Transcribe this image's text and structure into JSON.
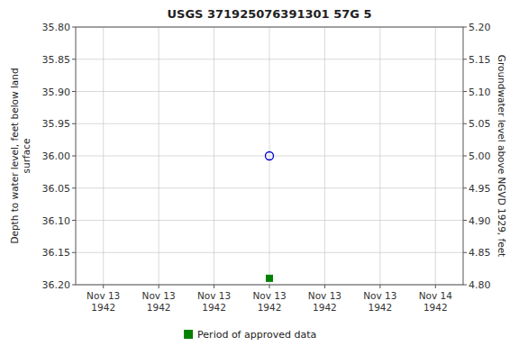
{
  "chart_data": {
    "type": "scatter",
    "title": "USGS 371925076391301 57G  5",
    "ylabel": "Depth to water level, feet below land\nsurface",
    "y2label": "Groundwater level above NGVD 1929, feet",
    "categories": [
      "Nov 13\n1942",
      "Nov 13\n1942",
      "Nov 13\n1942",
      "Nov 13\n1942",
      "Nov 13\n1942",
      "Nov 13\n1942",
      "Nov 14\n1942"
    ],
    "series": [
      {
        "color": "#0000cc",
        "marker": "open-circle",
        "values": [
          null,
          null,
          null,
          36.0,
          null,
          null,
          null
        ]
      },
      {
        "name": "Period of approved data",
        "color": "#008000",
        "marker": "square",
        "values": [
          null,
          null,
          null,
          36.19,
          null,
          null,
          null
        ]
      }
    ],
    "ylim": [
      36.2,
      35.8
    ],
    "yticks": [
      {
        "value": 35.8,
        "label": "35.80"
      },
      {
        "value": 35.85,
        "label": "35.85"
      },
      {
        "value": 35.9,
        "label": "35.90"
      },
      {
        "value": 35.95,
        "label": "35.95"
      },
      {
        "value": 36.0,
        "label": "36.00"
      },
      {
        "value": 36.05,
        "label": "36.05"
      },
      {
        "value": 36.1,
        "label": "36.10"
      },
      {
        "value": 36.15,
        "label": "36.15"
      },
      {
        "value": 36.2,
        "label": "36.20"
      }
    ],
    "y2lim": [
      4.8,
      5.2
    ],
    "y2ticks": [
      {
        "value": 5.2,
        "label": "5.20"
      },
      {
        "value": 5.15,
        "label": "5.15"
      },
      {
        "value": 5.1,
        "label": "5.10"
      },
      {
        "value": 5.05,
        "label": "5.05"
      },
      {
        "value": 5.0,
        "label": "5.00"
      },
      {
        "value": 4.95,
        "label": "4.95"
      },
      {
        "value": 4.9,
        "label": "4.90"
      },
      {
        "value": 4.85,
        "label": "4.85"
      },
      {
        "value": 4.8,
        "label": "4.80"
      }
    ],
    "grid": true,
    "grid_color": "#c0c0c0",
    "legend": "bottom"
  }
}
